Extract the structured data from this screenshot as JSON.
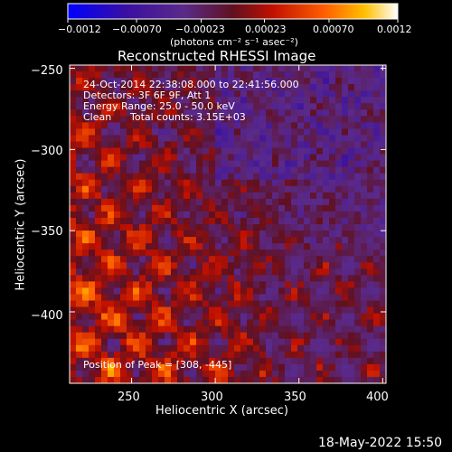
{
  "chart_data": {
    "type": "heatmap",
    "title": "Reconstructed RHESSI Image",
    "xlabel": "Heliocentric X (arcsec)",
    "ylabel": "Heliocentric Y (arcsec)",
    "xlim": [
      213,
      402
    ],
    "ylim": [
      -444,
      -248
    ],
    "x_ticks": [
      250,
      300,
      350,
      400
    ],
    "x_tick_labels": [
      "250",
      "300",
      "350",
      "400"
    ],
    "y_ticks": [
      -250,
      -300,
      -350,
      -400
    ],
    "y_tick_labels": [
      "−250",
      "−300",
      "−350",
      "−400"
    ],
    "colorbar": {
      "range": [
        -0.0012,
        0.0012
      ],
      "ticks": [
        -0.0012,
        -0.0007,
        -0.00023,
        0.00023,
        0.0007,
        0.0012
      ],
      "tick_labels": [
        "−0.0012",
        "−0.00070",
        "−0.00023",
        "0.00023",
        "0.00070",
        "0.0012"
      ],
      "units_label": "(photons cm⁻² s⁻¹ asec⁻²)",
      "colormap": [
        "#0000ff",
        "#3a0f8a",
        "#5a2a90",
        "#8a1020",
        "#d01808",
        "#ff5500",
        "#ffb000",
        "#ffffff"
      ]
    },
    "annotations": {
      "time_range": "24-Oct-2014 22:38:08.000 to 22:41:56.000",
      "detectors": "Detectors: 3F 6F 9F, Att 1",
      "energy": "Energy Range: 25.0 - 50.0 keV",
      "method": "Clean",
      "counts": "Total counts: 3.15E+03",
      "peak": "Position of Peak = [308, -445]"
    },
    "footer_date": "18-May-2022 15:50"
  }
}
